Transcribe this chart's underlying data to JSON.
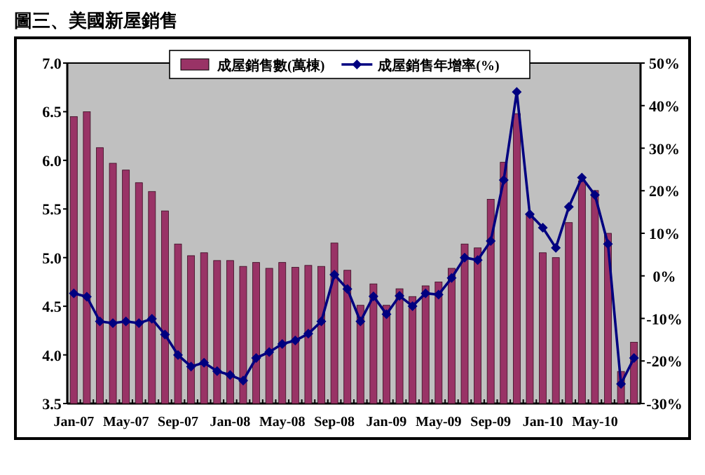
{
  "chart_data": {
    "type": "bar",
    "title": "圖三、美國新屋銷售",
    "categories": [
      "Jan-07",
      null,
      null,
      null,
      "May-07",
      null,
      null,
      null,
      "Sep-07",
      null,
      null,
      null,
      "Jan-08",
      null,
      null,
      null,
      "May-08",
      null,
      null,
      null,
      "Sep-08",
      null,
      null,
      null,
      "Jan-09",
      null,
      null,
      null,
      "May-09",
      null,
      null,
      null,
      "Sep-09",
      null,
      null,
      null,
      "Jan-10",
      null,
      null,
      null,
      "May-10",
      null,
      null,
      null
    ],
    "series": [
      {
        "name": "成屋銷售數(萬棟)",
        "color": "#993366",
        "values": [
          6.45,
          6.5,
          6.13,
          5.97,
          5.9,
          5.77,
          5.68,
          5.48,
          5.14,
          5.02,
          5.05,
          4.97,
          4.97,
          4.91,
          4.95,
          4.89,
          4.95,
          4.9,
          4.92,
          4.91,
          5.15,
          4.87,
          4.51,
          4.73,
          4.51,
          4.68,
          4.6,
          4.71,
          4.75,
          4.89,
          5.14,
          5.1,
          5.6,
          5.98,
          6.48,
          5.44,
          5.05,
          5.0,
          5.36,
          5.79,
          5.69,
          5.25,
          3.83,
          4.13
        ]
      },
      {
        "name": "成屋銷售年增率(%)",
        "type": "line",
        "axis": "y2",
        "color": "#000080",
        "values": [
          -4.1,
          -4.9,
          -10.7,
          -11.1,
          -10.7,
          -11.1,
          -10.1,
          -13.8,
          -18.6,
          -21.3,
          -20.4,
          -22.4,
          -23.3,
          -24.6,
          -19.3,
          -17.9,
          -16.0,
          -15.2,
          -13.6,
          -10.7,
          0.3,
          -3.1,
          -10.7,
          -4.8,
          -9.0,
          -4.7,
          -7.1,
          -4.1,
          -4.4,
          -0.5,
          4.3,
          3.7,
          8.2,
          22.5,
          43.2,
          14.5,
          11.3,
          6.6,
          16.2,
          23.1,
          19.0,
          7.5,
          -25.4,
          -19.3
        ]
      }
    ],
    "ylim": [
      3.5,
      7
    ],
    "yticks": [
      {
        "value": 3.5,
        "label": "3.5"
      },
      {
        "value": 4,
        "label": "4.0"
      },
      {
        "value": 4.5,
        "label": "4.5"
      },
      {
        "value": 5,
        "label": "5.0"
      },
      {
        "value": 5.5,
        "label": "5.5"
      },
      {
        "value": 6,
        "label": "6.0"
      },
      {
        "value": 6.5,
        "label": "6.5"
      },
      {
        "value": 7,
        "label": "7.0"
      }
    ],
    "y2lim": [
      -30,
      50
    ],
    "y2ticks": [
      {
        "value": -30,
        "label": "-30%"
      },
      {
        "value": -20,
        "label": "-20%"
      },
      {
        "value": -10,
        "label": "-10%"
      },
      {
        "value": 0,
        "label": "0%"
      },
      {
        "value": 10,
        "label": "10%"
      },
      {
        "value": 20,
        "label": "20%"
      },
      {
        "value": 30,
        "label": "30%"
      },
      {
        "value": 40,
        "label": "40%"
      },
      {
        "value": 50,
        "label": "50%"
      }
    ],
    "legend": "top",
    "marker": "diamond"
  }
}
